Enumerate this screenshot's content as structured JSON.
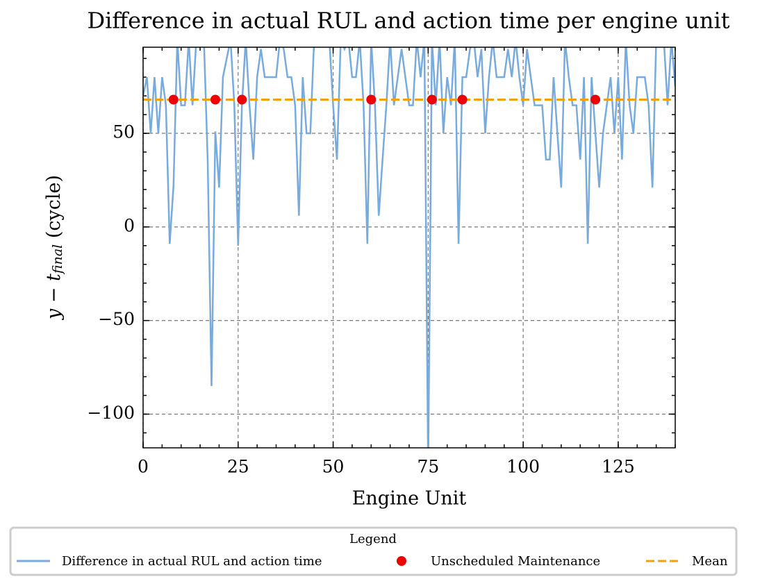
{
  "chart_data": {
    "type": "line",
    "title": "Difference in actual RUL and action time per engine unit",
    "xlabel": "Engine Unit",
    "ylabel": {
      "main": "y − t",
      "sub": "final",
      "rest": " (cycle)"
    },
    "xlim": [
      0,
      140
    ],
    "ylim": [
      -118,
      96
    ],
    "xticks": [
      0,
      25,
      50,
      75,
      100,
      125
    ],
    "yticks": [
      {
        "value": -100,
        "label": "−100"
      },
      {
        "value": -50,
        "label": "−50"
      },
      0,
      50
    ],
    "grid": true,
    "legend": {
      "title": "Legend",
      "position": "bottom"
    },
    "series": [
      {
        "name": "Difference in actual RUL and action time",
        "type": "line",
        "color": "#77aadd",
        "x": [
          0,
          1,
          2,
          3,
          4,
          5,
          6,
          7,
          8,
          9,
          10,
          11,
          12,
          13,
          14,
          15,
          16,
          17,
          18,
          19,
          20,
          21,
          22,
          23,
          24,
          25,
          26,
          27,
          28,
          29,
          30,
          31,
          32,
          33,
          34,
          35,
          36,
          37,
          38,
          39,
          40,
          41,
          42,
          43,
          44,
          45,
          46,
          47,
          48,
          49,
          50,
          51,
          52,
          53,
          54,
          55,
          56,
          57,
          58,
          59,
          60,
          61,
          62,
          63,
          64,
          65,
          66,
          67,
          68,
          69,
          70,
          71,
          72,
          73,
          74,
          75,
          76,
          77,
          78,
          79,
          80,
          81,
          82,
          83,
          84,
          85,
          86,
          87,
          88,
          89,
          90,
          91,
          92,
          93,
          94,
          95,
          96,
          97,
          98,
          99,
          100,
          101,
          102,
          103,
          104,
          105,
          106,
          107,
          108,
          109,
          110,
          111,
          112,
          113,
          114,
          115,
          116,
          117,
          118,
          119,
          120,
          121,
          122,
          123,
          124,
          125,
          126,
          127,
          128,
          129,
          130,
          131,
          132,
          133,
          134,
          135,
          136,
          137,
          138,
          139,
          140
        ],
        "values": [
          70,
          80,
          50,
          80,
          50,
          80,
          65,
          -9,
          22,
          100,
          65,
          65,
          100,
          65,
          100,
          100,
          100,
          35,
          -85,
          51,
          21,
          80,
          90,
          100,
          65,
          -10,
          65,
          100,
          65,
          36,
          80,
          95,
          80,
          80,
          80,
          80,
          100,
          95,
          80,
          80,
          65,
          6,
          80,
          50,
          50,
          100,
          100,
          100,
          100,
          100,
          65,
          36,
          100,
          95,
          100,
          80,
          80,
          100,
          65,
          -9,
          100,
          65,
          6,
          36,
          65,
          100,
          65,
          80,
          95,
          80,
          65,
          65,
          100,
          80,
          100,
          -130,
          100,
          65,
          100,
          50,
          80,
          65,
          100,
          -9,
          80,
          80,
          95,
          100,
          80,
          95,
          50,
          80,
          100,
          80,
          80,
          80,
          95,
          80,
          100,
          80,
          65,
          95,
          80,
          65,
          65,
          65,
          36,
          36,
          80,
          50,
          21,
          100,
          80,
          65,
          65,
          36,
          80,
          -9,
          80,
          50,
          21,
          50,
          65,
          80,
          50,
          80,
          36,
          100,
          65,
          50,
          80,
          80,
          80,
          65,
          21,
          100,
          100,
          100,
          65,
          100,
          75
        ]
      },
      {
        "name": "Unscheduled Maintenance",
        "type": "scatter",
        "color": "#ee0000",
        "x": [
          8,
          19,
          26,
          60,
          76,
          84,
          119
        ],
        "values": [
          68,
          68,
          68,
          68,
          68,
          68,
          68
        ]
      },
      {
        "name": "Mean",
        "type": "hline",
        "color": "#f5a00a",
        "values": [
          68
        ]
      }
    ]
  }
}
